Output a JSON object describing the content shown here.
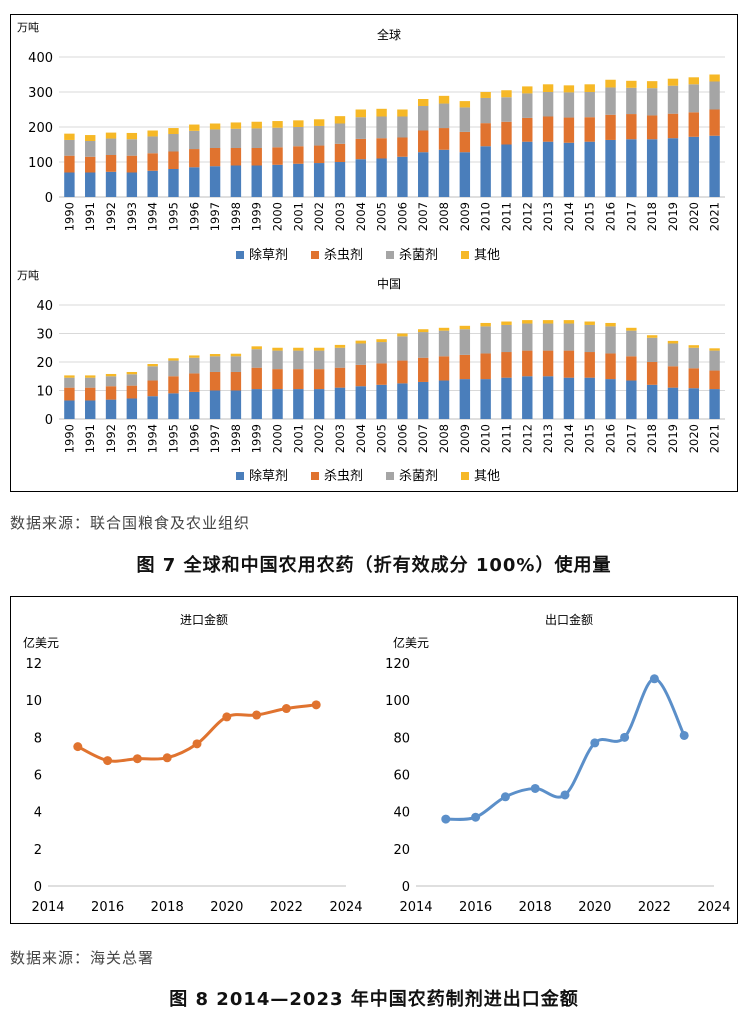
{
  "figure7": {
    "source": "数据来源：联合国粮食及农业组织",
    "caption": "图 7  全球和中国农用农药（折有效成分 100%）使用量"
  },
  "figure8": {
    "source": "数据来源：海关总署",
    "caption": "图 8  2014—2023 年中国农药制剂进出口金额"
  },
  "colors": {
    "herbicide": "#4a7ebb",
    "insecticide": "#e0732f",
    "fungicide": "#a5a5a5",
    "other": "#f6b826",
    "import_line": "#e0732f",
    "export_line": "#5b8fc9"
  },
  "chart_data": [
    {
      "id": "global",
      "type": "bar",
      "stacked": true,
      "title": "全球",
      "ylabel": "万吨",
      "ylim": [
        0,
        400
      ],
      "yticks": [
        0,
        100,
        200,
        300,
        400
      ],
      "grid": true,
      "legend_position": "bottom",
      "categories": [
        "1990",
        "1991",
        "1992",
        "1993",
        "1994",
        "1995",
        "1996",
        "1997",
        "1998",
        "1999",
        "2000",
        "2001",
        "2002",
        "2003",
        "2004",
        "2005",
        "2006",
        "2007",
        "2008",
        "2009",
        "2010",
        "2011",
        "2012",
        "2013",
        "2014",
        "2015",
        "2016",
        "2017",
        "2018",
        "2019",
        "2020",
        "2021"
      ],
      "series": [
        {
          "name": "除草剂",
          "values": [
            70,
            70,
            72,
            70,
            75,
            80,
            85,
            88,
            90,
            90,
            92,
            95,
            97,
            100,
            108,
            110,
            115,
            128,
            135,
            128,
            145,
            150,
            158,
            158,
            155,
            158,
            163,
            165,
            165,
            168,
            172,
            175
          ]
        },
        {
          "name": "杀虫剂",
          "values": [
            48,
            45,
            48,
            48,
            50,
            50,
            52,
            52,
            50,
            50,
            50,
            50,
            50,
            52,
            58,
            58,
            55,
            62,
            62,
            58,
            66,
            65,
            68,
            72,
            72,
            70,
            72,
            72,
            68,
            70,
            70,
            75
          ]
        },
        {
          "name": "杀菌剂",
          "values": [
            45,
            45,
            47,
            47,
            48,
            50,
            52,
            53,
            55,
            56,
            56,
            55,
            56,
            58,
            62,
            62,
            60,
            70,
            70,
            70,
            72,
            70,
            70,
            70,
            72,
            72,
            78,
            75,
            78,
            80,
            80,
            80
          ]
        },
        {
          "name": "其他",
          "values": [
            18,
            17,
            17,
            18,
            17,
            17,
            18,
            17,
            18,
            19,
            19,
            19,
            19,
            21,
            22,
            22,
            20,
            20,
            22,
            18,
            17,
            20,
            20,
            22,
            20,
            22,
            22,
            20,
            20,
            20,
            20,
            20
          ]
        }
      ]
    },
    {
      "id": "china",
      "type": "bar",
      "stacked": true,
      "title": "中国",
      "ylabel": "万吨",
      "ylim": [
        0,
        40
      ],
      "yticks": [
        0,
        10,
        20,
        30,
        40
      ],
      "grid": true,
      "legend_position": "bottom",
      "categories": [
        "1990",
        "1991",
        "1992",
        "1993",
        "1994",
        "1995",
        "1996",
        "1997",
        "1998",
        "1999",
        "2000",
        "2001",
        "2002",
        "2003",
        "2004",
        "2005",
        "2006",
        "2007",
        "2008",
        "2009",
        "2010",
        "2011",
        "2012",
        "2013",
        "2014",
        "2015",
        "2016",
        "2017",
        "2018",
        "2019",
        "2020",
        "2021"
      ],
      "series": [
        {
          "name": "除草剂",
          "values": [
            6.5,
            6.5,
            6.8,
            7.2,
            8,
            9,
            9.5,
            10,
            10,
            10.5,
            10.5,
            10.5,
            10.5,
            11,
            11.5,
            12,
            12.5,
            13,
            13.5,
            14,
            14,
            14.5,
            15,
            15,
            14.5,
            14.5,
            14,
            13.5,
            12,
            11,
            10.8,
            10.5
          ]
        },
        {
          "name": "杀虫剂",
          "values": [
            4.5,
            4.5,
            4.7,
            4.5,
            5.5,
            6,
            6.5,
            6.5,
            6.5,
            7.5,
            7,
            7,
            7,
            7,
            7.5,
            7.5,
            8,
            8.5,
            8.5,
            8.5,
            9,
            9,
            9,
            9,
            9.5,
            9,
            9,
            8.5,
            8,
            7.5,
            7,
            6.5
          ]
        },
        {
          "name": "杀菌剂",
          "values": [
            3.5,
            3.5,
            3.5,
            4,
            5,
            5.5,
            5.5,
            5.5,
            5.5,
            6.5,
            6.5,
            6.5,
            6.5,
            7,
            7.5,
            7.5,
            8.5,
            9,
            9,
            9,
            9.5,
            9.5,
            9.5,
            9.5,
            9.5,
            9.5,
            9.5,
            9,
            8.5,
            8,
            7.2,
            7
          ]
        },
        {
          "name": "其他",
          "values": [
            0.8,
            0.8,
            0.8,
            0.8,
            0.8,
            0.8,
            0.8,
            0.8,
            0.9,
            1,
            1,
            1,
            1,
            1,
            1,
            1,
            1,
            1,
            1,
            1.2,
            1.2,
            1.2,
            1.2,
            1.2,
            1.2,
            1.2,
            1.2,
            1,
            0.9,
            0.9,
            0.9,
            0.8
          ]
        }
      ]
    },
    {
      "id": "import",
      "type": "line",
      "title": "进口金额",
      "ylabel": "亿美元",
      "xlim": [
        2014,
        2024
      ],
      "xticks": [
        2014,
        2016,
        2018,
        2020,
        2022,
        2024
      ],
      "ylim": [
        0,
        12
      ],
      "yticks": [
        0,
        2,
        4,
        6,
        8,
        10,
        12
      ],
      "grid": false,
      "smooth": true,
      "x": [
        2015,
        2016,
        2017,
        2018,
        2019,
        2020,
        2021,
        2022,
        2023
      ],
      "y": [
        7.5,
        6.75,
        6.85,
        6.9,
        7.65,
        9.1,
        9.2,
        9.55,
        9.75
      ]
    },
    {
      "id": "export",
      "type": "line",
      "title": "出口金额",
      "ylabel": "亿美元",
      "xlim": [
        2014,
        2024
      ],
      "xticks": [
        2014,
        2016,
        2018,
        2020,
        2022,
        2024
      ],
      "ylim": [
        0,
        120
      ],
      "yticks": [
        0,
        20,
        40,
        60,
        80,
        100,
        120
      ],
      "grid": false,
      "smooth": true,
      "x": [
        2015,
        2016,
        2017,
        2018,
        2019,
        2020,
        2021,
        2022,
        2023
      ],
      "y": [
        36,
        37,
        48,
        52.5,
        49,
        77,
        80,
        111.5,
        81
      ]
    }
  ]
}
